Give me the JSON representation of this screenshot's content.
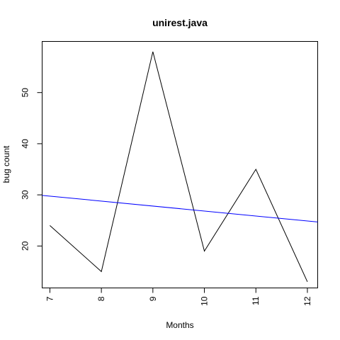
{
  "chart_data": {
    "type": "line",
    "title": "unirest.java",
    "xlabel": "Months",
    "ylabel": "bug count",
    "x": [
      7,
      8,
      9,
      10,
      11,
      12
    ],
    "xlim": [
      6.85,
      12.2
    ],
    "ylim": [
      11.8,
      60
    ],
    "xticks": [
      7,
      8,
      9,
      10,
      11,
      12
    ],
    "yticks": [
      20,
      30,
      40,
      50
    ],
    "series": [
      {
        "values": [
          24,
          15,
          58,
          19,
          35,
          13
        ],
        "color": "#000000"
      }
    ],
    "trendline": {
      "x": [
        6.85,
        12.2
      ],
      "y": [
        29.9,
        24.7
      ],
      "color": "#0000ff"
    }
  }
}
